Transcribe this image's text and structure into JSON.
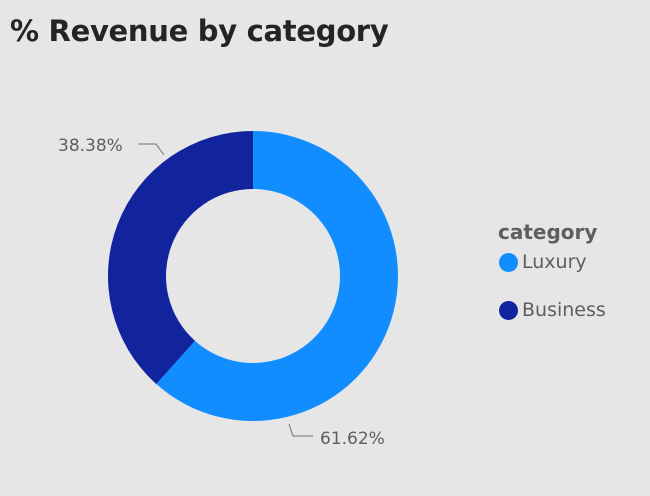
{
  "header": {
    "title": "% Revenue by category"
  },
  "legend": {
    "title": "category",
    "items": [
      {
        "label": "Luxury",
        "color": "#118dff"
      },
      {
        "label": "Business",
        "color": "#12239e"
      }
    ]
  },
  "labels": {
    "business": "38.38%",
    "luxury": "61.62%"
  },
  "chart_data": {
    "type": "pie",
    "subtype": "donut",
    "title": "% Revenue by category",
    "legend_title": "category",
    "legend_position": "right",
    "categories": [
      "Luxury",
      "Business"
    ],
    "values": [
      61.62,
      38.38
    ],
    "unit": "%",
    "colors": [
      "#118dff",
      "#12239e"
    ]
  }
}
